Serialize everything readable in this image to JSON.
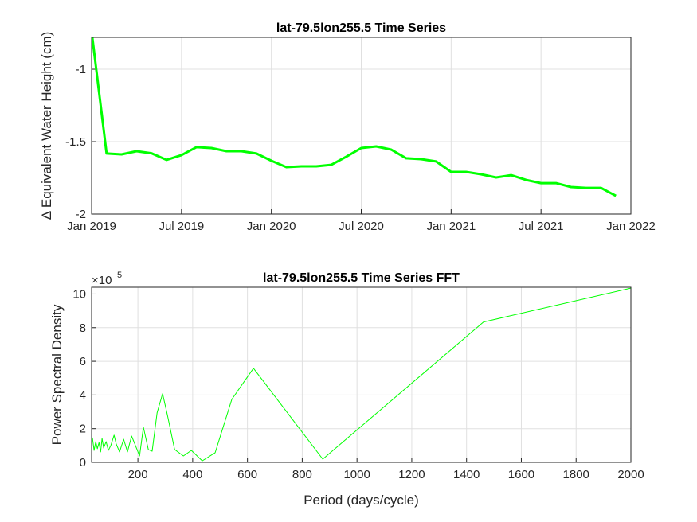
{
  "chart_data": [
    {
      "type": "line",
      "title": "lat-79.5lon255.5 Time Series",
      "ylabel": "Δ Equivalent Water Height (cm)",
      "x": [
        "2019-01",
        "2019-02",
        "2019-03",
        "2019-04",
        "2019-05",
        "2019-06",
        "2019-07",
        "2019-08",
        "2019-09",
        "2019-10",
        "2019-11",
        "2019-12",
        "2020-01",
        "2020-02",
        "2020-03",
        "2020-04",
        "2020-05",
        "2020-06",
        "2020-07",
        "2020-08",
        "2020-09",
        "2020-10",
        "2020-11",
        "2020-12",
        "2021-01",
        "2021-02",
        "2021-03",
        "2021-04",
        "2021-05",
        "2021-06",
        "2021-07",
        "2021-08",
        "2021-09",
        "2021-10",
        "2021-11",
        "2021-12"
      ],
      "values": [
        -0.74,
        -1.582,
        -1.588,
        -1.566,
        -1.58,
        -1.626,
        -1.593,
        -1.538,
        -1.544,
        -1.566,
        -1.566,
        -1.582,
        -1.632,
        -1.676,
        -1.67,
        -1.67,
        -1.66,
        -1.604,
        -1.544,
        -1.533,
        -1.555,
        -1.615,
        -1.621,
        -1.637,
        -1.709,
        -1.709,
        -1.725,
        -1.747,
        -1.731,
        -1.764,
        -1.786,
        -1.786,
        -1.813,
        -1.819,
        -1.819,
        -1.874
      ],
      "color": "#00ff00",
      "xlim": [
        "2019-01",
        "2022-01"
      ],
      "xticks": [
        {
          "value": "2019-01",
          "label": "Jan 2019"
        },
        {
          "value": "2019-07",
          "label": "Jul 2019"
        },
        {
          "value": "2020-01",
          "label": "Jan 2020"
        },
        {
          "value": "2020-07",
          "label": "Jul 2020"
        },
        {
          "value": "2021-01",
          "label": "Jan 2021"
        },
        {
          "value": "2021-07",
          "label": "Jul 2021"
        },
        {
          "value": "2022-01",
          "label": "Jan 2022"
        }
      ],
      "ylim": [
        -2,
        -0.78
      ],
      "yticks": [
        -2,
        -1.5,
        -1
      ],
      "grid": true
    },
    {
      "type": "line",
      "title": "lat-79.5lon255.5 Time Series FFT",
      "xlabel": "Period (days/cycle)",
      "ylabel": "Power Spectral Density",
      "y_multiplier": {
        "base": "×10",
        "exponent": "5"
      },
      "x": [
        34,
        40,
        46,
        52,
        58,
        64,
        69,
        75,
        84,
        92,
        101,
        113,
        121,
        133,
        148,
        162,
        177,
        191,
        206,
        220,
        238,
        252,
        270,
        290,
        308,
        334,
        366,
        395,
        435,
        482,
        543,
        622,
        875,
        1462,
        2000
      ],
      "values": [
        1.47,
        0.71,
        1.23,
        0.81,
        1.18,
        0.62,
        1.42,
        0.85,
        1.23,
        0.71,
        1.0,
        1.61,
        1.09,
        0.62,
        1.37,
        0.62,
        1.56,
        1.0,
        0.38,
        2.09,
        0.76,
        0.66,
        2.94,
        4.08,
        2.8,
        0.76,
        0.38,
        0.71,
        0.09,
        0.57,
        3.74,
        5.59,
        0.19,
        8.34,
        10.35
      ],
      "color": "#00ff00",
      "xlim": [
        31,
        2000
      ],
      "xticks": [
        200,
        400,
        600,
        800,
        1000,
        1200,
        1400,
        1600,
        1800,
        2000
      ],
      "ylim": [
        0,
        10.4
      ],
      "yticks": [
        0,
        2,
        4,
        6,
        8,
        10
      ],
      "grid": true
    }
  ]
}
